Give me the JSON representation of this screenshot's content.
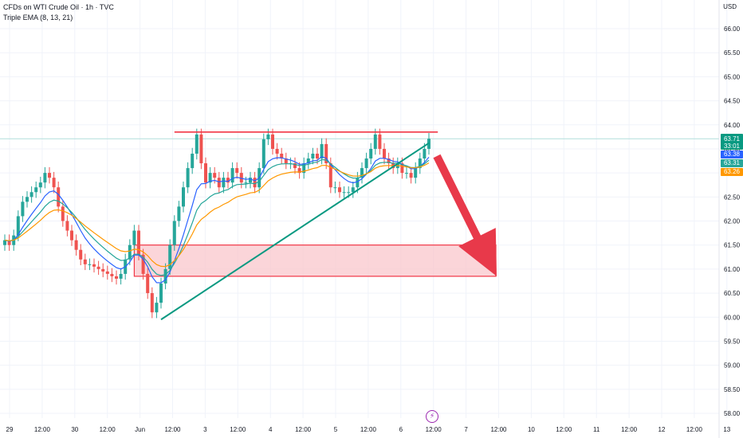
{
  "header": {
    "title": "CFDs on WTI Crude Oil · 1h · TVC",
    "indicator": "Triple EMA (8, 13, 21)",
    "currency": "USD"
  },
  "icons": {
    "flash": "lightning-icon"
  },
  "colors": {
    "up": "#26a69a",
    "down": "#ef5350",
    "ema_fast": "#2962ff",
    "ema_mid": "#26a69a",
    "ema_slow": "#ff9800",
    "resistance": "#f23645",
    "trendline": "#089981",
    "zone_fill": "#f9c7cc",
    "arrow": "#e8394a",
    "grid": "#f0f3fa",
    "last_price_line": "#b2dfdb"
  },
  "chart_data": {
    "type": "candlestick",
    "symbol": "CFDs on WTI Crude Oil",
    "interval": "1h",
    "x_labels": [
      "29",
      "12:00",
      "30",
      "12:00",
      "Jun",
      "12:00",
      "3",
      "12:00",
      "4",
      "12:00",
      "5",
      "12:00",
      "6",
      "12:00",
      "7",
      "12:00",
      "10",
      "12:00",
      "11",
      "12:00",
      "12",
      "12:00",
      "13"
    ],
    "y_ticks": [
      "66.00",
      "65.50",
      "65.00",
      "64.50",
      "64.00",
      "63.50",
      "63.00",
      "62.50",
      "62.00",
      "61.50",
      "61.00",
      "60.50",
      "60.00",
      "59.50",
      "59.00",
      "58.50",
      "58.00"
    ],
    "ylim": [
      58.0,
      66.0
    ],
    "closes": [
      61.6,
      61.5,
      61.7,
      62.1,
      62.4,
      62.5,
      62.6,
      62.7,
      62.8,
      63.0,
      62.9,
      62.7,
      62.3,
      62.0,
      61.8,
      61.6,
      61.4,
      61.2,
      61.1,
      61.1,
      61.05,
      61.0,
      60.95,
      60.9,
      60.85,
      60.8,
      60.9,
      61.2,
      61.5,
      61.8,
      61.3,
      60.9,
      60.5,
      60.1,
      60.3,
      60.7,
      61.0,
      61.5,
      62.0,
      62.3,
      62.7,
      63.1,
      63.4,
      63.8,
      63.2,
      62.8,
      63.0,
      62.9,
      62.7,
      62.9,
      62.8,
      63.1,
      63.0,
      62.8,
      62.8,
      62.9,
      62.7,
      63.1,
      63.7,
      63.8,
      63.5,
      63.4,
      63.3,
      63.2,
      63.2,
      63.1,
      63.0,
      63.2,
      63.3,
      63.4,
      63.3,
      63.6,
      63.2,
      62.7,
      62.7,
      62.6,
      62.6,
      62.6,
      62.7,
      62.9,
      63.1,
      63.3,
      63.5,
      63.8,
      63.5,
      63.3,
      63.2,
      63.1,
      63.2,
      63.0,
      63.0,
      62.9,
      63.1,
      63.3,
      63.5,
      63.71
    ],
    "last_price": "63.71",
    "countdown": "33:01",
    "ema_values": [
      "63.38",
      "63.31",
      "63.26"
    ],
    "ema_series": [
      "EMA 8",
      "EMA 13",
      "EMA 21"
    ],
    "resistance_level": 63.85,
    "support_zone": [
      60.85,
      61.5
    ],
    "trendline": {
      "from": {
        "bar": 35,
        "price": 59.95
      },
      "to": {
        "bar": 95,
        "price": 63.62
      }
    },
    "projected_target": 60.85,
    "grid": true
  }
}
